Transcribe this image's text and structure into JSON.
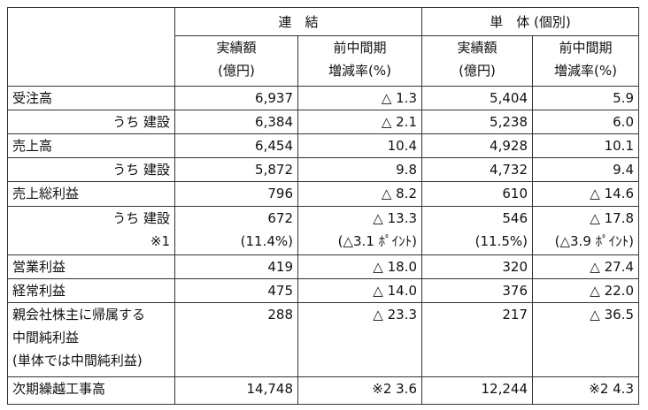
{
  "table": {
    "header": {
      "groups": [
        "連　結",
        "単　体 (個別)"
      ],
      "columns": [
        [
          "実績額",
          "(億円)"
        ],
        [
          "前中間期",
          "増減率(%)"
        ],
        [
          "実績額",
          "(億円)"
        ],
        [
          "前中間期",
          "増減率(%)"
        ]
      ]
    },
    "rows": [
      [
        [
          "受注高"
        ],
        [
          "6,937"
        ],
        [
          "△ 1.3"
        ],
        [
          "5,404"
        ],
        [
          "5.9"
        ]
      ],
      [
        [
          "うち 建設"
        ],
        [
          "6,384"
        ],
        [
          "△ 2.1"
        ],
        [
          "5,238"
        ],
        [
          "6.0"
        ]
      ],
      [
        [
          "売上高"
        ],
        [
          "6,454"
        ],
        [
          "10.4"
        ],
        [
          "4,928"
        ],
        [
          "10.1"
        ]
      ],
      [
        [
          "うち 建設"
        ],
        [
          "5,872"
        ],
        [
          "9.8"
        ],
        [
          "4,732"
        ],
        [
          "9.4"
        ]
      ],
      [
        [
          "売上総利益"
        ],
        [
          "796"
        ],
        [
          "△ 8.2"
        ],
        [
          "610"
        ],
        [
          "△ 14.6"
        ]
      ],
      [
        [
          "うち 建設",
          "※1"
        ],
        [
          "672",
          "(11.4%)"
        ],
        [
          "△ 13.3",
          "(△3.1 ﾎﾟｲﾝﾄ)"
        ],
        [
          "546",
          "(11.5%)"
        ],
        [
          "△ 17.8",
          "(△3.9 ﾎﾟｲﾝﾄ)"
        ]
      ],
      [
        [
          "営業利益"
        ],
        [
          "419"
        ],
        [
          "△ 18.0"
        ],
        [
          "320"
        ],
        [
          "△ 27.4"
        ]
      ],
      [
        [
          "経常利益"
        ],
        [
          "475"
        ],
        [
          "△ 14.0"
        ],
        [
          "376"
        ],
        [
          "△ 22.0"
        ]
      ],
      [
        [
          "親会社株主に帰属する",
          "中間純利益",
          "(単体では中間純利益)"
        ],
        [
          "288"
        ],
        [
          "△ 23.3"
        ],
        [
          "217"
        ],
        [
          "△ 36.5"
        ]
      ],
      [
        [
          "次期繰越工事高"
        ],
        [
          "14,748"
        ],
        [
          "※2  3.6"
        ],
        [
          "12,244"
        ],
        [
          "※2  4.3"
        ]
      ]
    ]
  }
}
